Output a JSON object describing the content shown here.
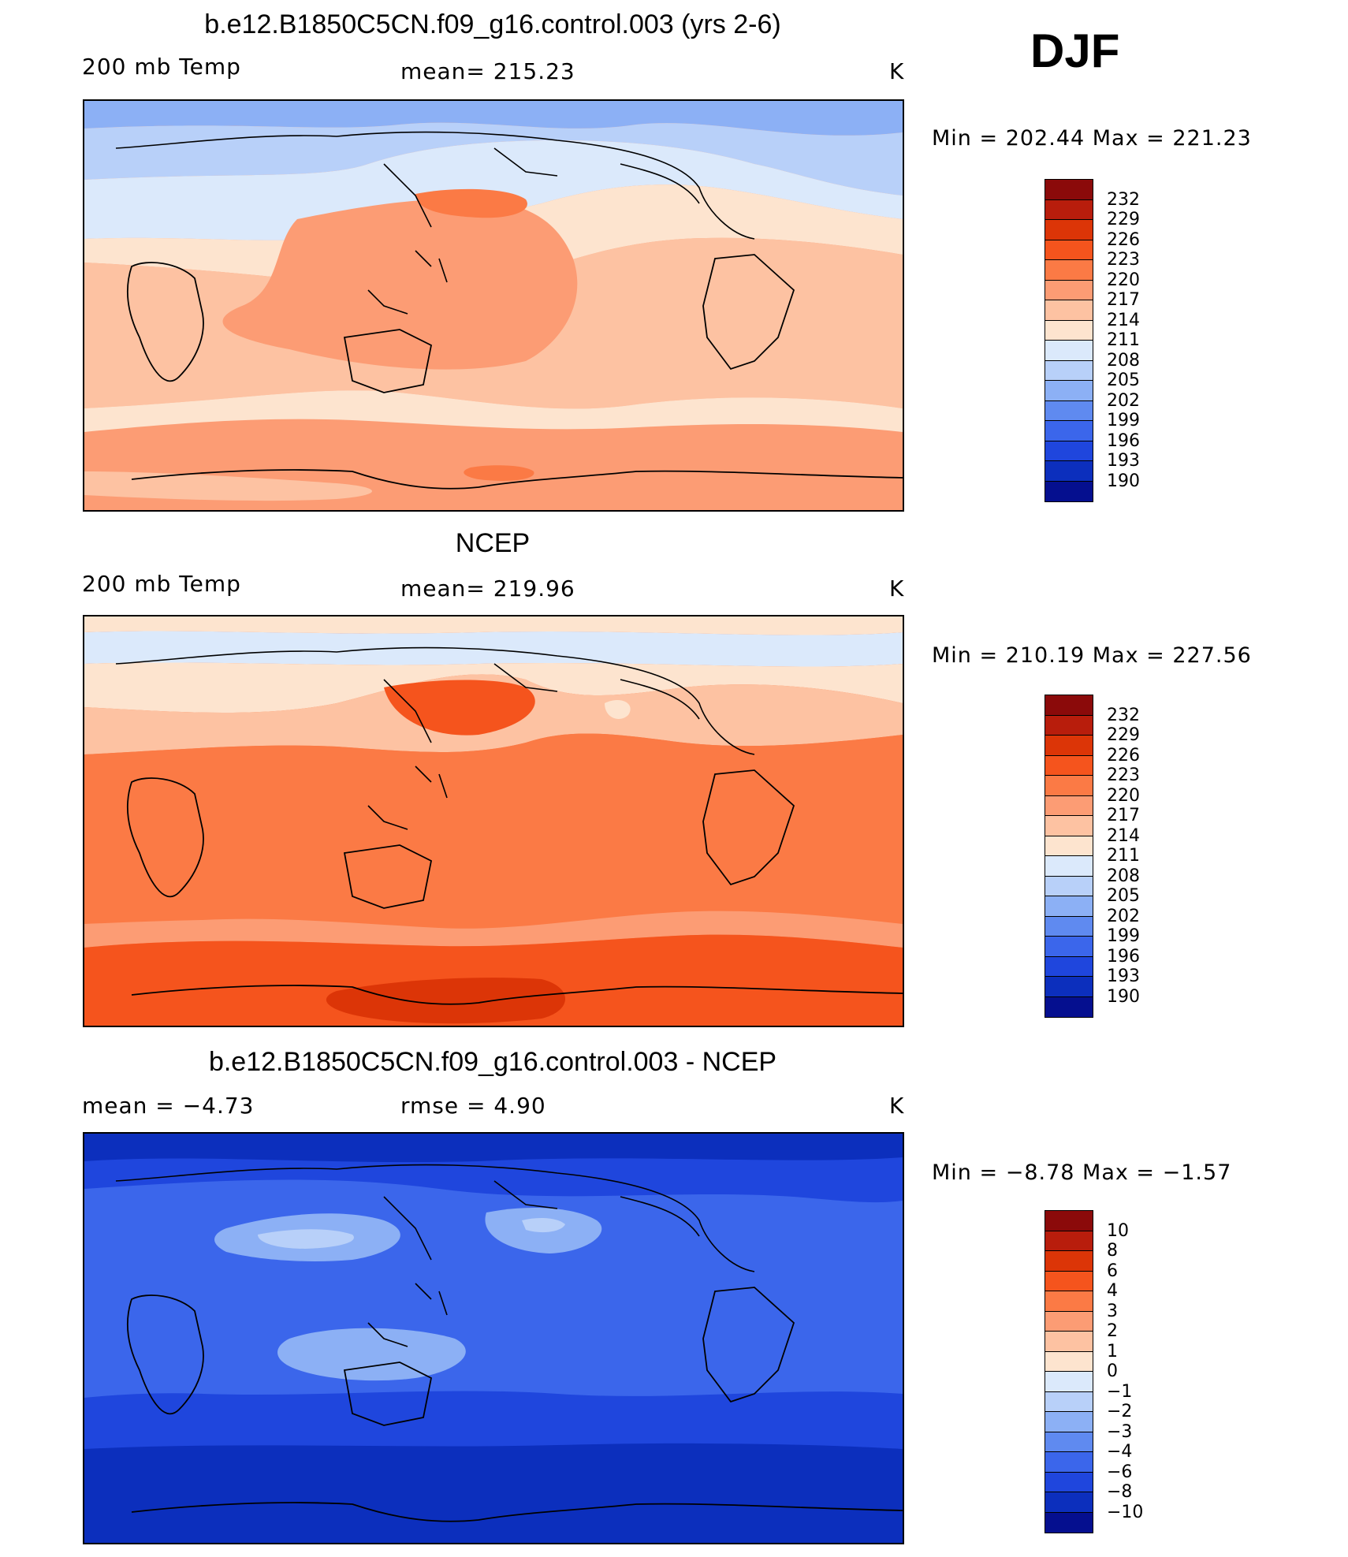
{
  "season": "DJF",
  "panels": [
    {
      "title": "b.e12.B1850C5CN.f09_g16.control.003 (yrs 2-6)",
      "left": "200 mb Temp",
      "center": "mean=  215.23",
      "unit": "K",
      "minmax": "Min  =  202.44  Max  =  221.23",
      "colorbar_labels": [
        "232",
        "229",
        "226",
        "223",
        "220",
        "217",
        "214",
        "211",
        "208",
        "205",
        "202",
        "199",
        "196",
        "193",
        "190"
      ]
    },
    {
      "title": "NCEP",
      "left": "200 mb Temp",
      "center": "mean=  219.96",
      "unit": "K",
      "minmax": "Min  =  210.19  Max  =  227.56",
      "colorbar_labels": [
        "232",
        "229",
        "226",
        "223",
        "220",
        "217",
        "214",
        "211",
        "208",
        "205",
        "202",
        "199",
        "196",
        "193",
        "190"
      ]
    },
    {
      "title": "b.e12.B1850C5CN.f09_g16.control.003 - NCEP",
      "left": "mean  =    −4.73",
      "center": "rmse  =     4.90",
      "unit": "K",
      "minmax": "Min  =    −8.78  Max  =    −1.57",
      "colorbar_labels": [
        "10",
        "8",
        "6",
        "4",
        "3",
        "2",
        "1",
        "0",
        "−1",
        "−2",
        "−3",
        "−4",
        "−6",
        "−8",
        "−10"
      ]
    }
  ],
  "colorbar_colors": [
    "#8b0a0a",
    "#b81d0c",
    "#dc3507",
    "#f5541d",
    "#fb7a45",
    "#fc9c74",
    "#fdc2a2",
    "#fde4cf",
    "#dbe9fb",
    "#b8d0f9",
    "#8cb0f5",
    "#5f8af0",
    "#3b66eb",
    "#1f46dd",
    "#0c2fbd",
    "#050f8f"
  ]
}
